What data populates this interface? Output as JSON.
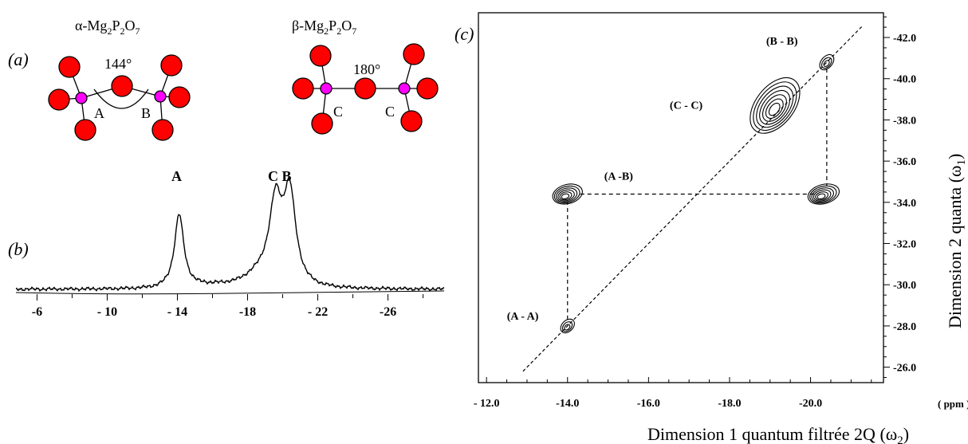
{
  "structures": {
    "alpha": {
      "prefix": "α-Mg",
      "s1": "2",
      "p": "P",
      "s2": "2",
      "o": "O",
      "s3": "7",
      "angle": "144°",
      "left_site": "A",
      "right_site": "B"
    },
    "beta": {
      "prefix": "β-Mg",
      "s1": "2",
      "p": "P",
      "s2": "2",
      "o": "O",
      "s3": "7",
      "angle": "180°",
      "left_site": "C",
      "right_site": "C"
    }
  },
  "panel_labels": {
    "a": "(a)",
    "b": "(b)",
    "c": "(c)"
  },
  "chart_data": [
    {
      "type": "line",
      "title": "",
      "peak_labels": [
        "A",
        "C B"
      ],
      "xlabel": "",
      "ylabel": "",
      "xticks": [
        "-6",
        "- 10",
        "- 14",
        "-18",
        "- 22",
        "-26"
      ],
      "xlim": [
        -4.8,
        -29.2
      ],
      "series": [
        {
          "peaks": [
            {
              "x": -14.1,
              "height": 0.82
            },
            {
              "x": -19.6,
              "height": 0.82
            },
            {
              "x": -20.4,
              "height": 1.0
            }
          ]
        }
      ]
    },
    {
      "type": "contour",
      "title": "",
      "xlabel": "Dimension 1 quantum filtrée 2Q (ω",
      "xlabel_sub": "2",
      "xlabel_end": ")",
      "ylabel": "Dimension 2 quanta (ω",
      "ylabel_sub": "1",
      "ylabel_end": ")",
      "x_unit": "( ppm  )",
      "xticks": [
        "- 12.0",
        "-14.0",
        "-16.0",
        "-18.0",
        "-20.0"
      ],
      "yticks": [
        "-26.0",
        "-28.0",
        "-30.0",
        "-32.0",
        "-34.0",
        "-36.0",
        "-38.0",
        "-40.0",
        "-42.0"
      ],
      "xlim": [
        -11.8,
        -21.8
      ],
      "ylim": [
        -25.25,
        -43.2
      ],
      "correlations": [
        {
          "label": "(A  - A)",
          "x": -14.0,
          "y": -28.0
        },
        {
          "label": "(A  -B)",
          "x": -14.0,
          "y": -34.4
        },
        {
          "label": "(C  - C)",
          "x": -19.2,
          "y": -38.7
        },
        {
          "label": "(B  - B)",
          "x": -20.4,
          "y": -40.8
        }
      ]
    }
  ]
}
